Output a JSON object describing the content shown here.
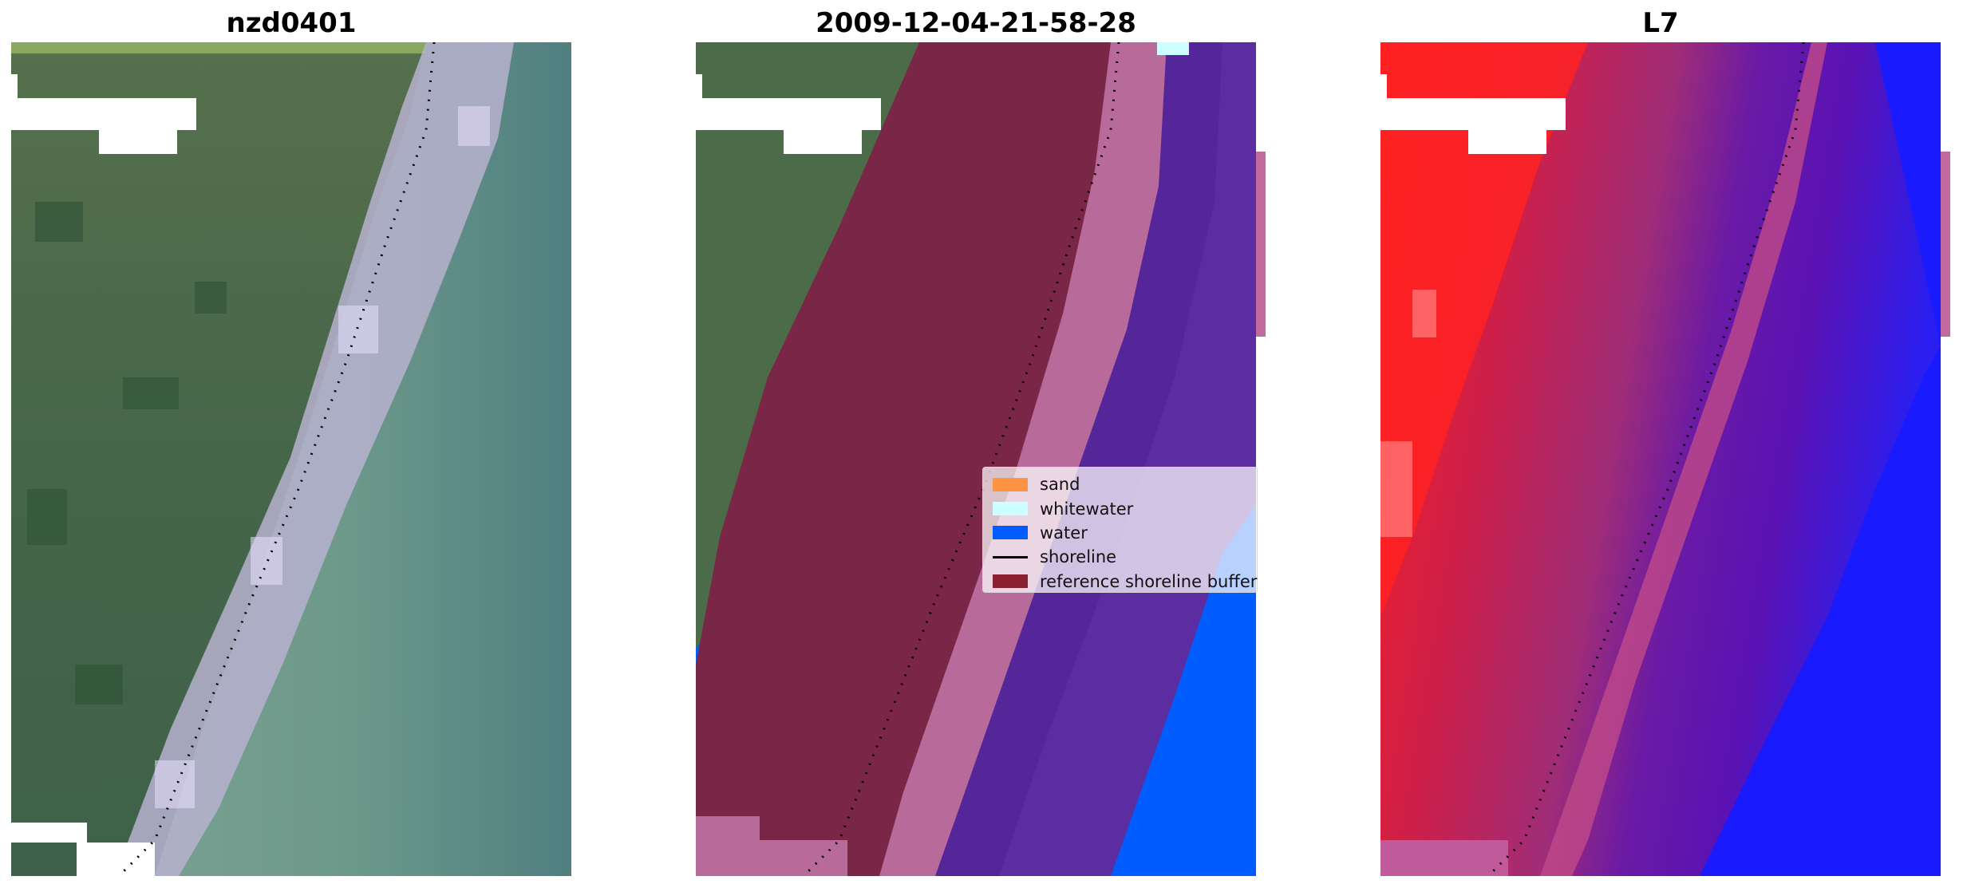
{
  "panels": [
    {
      "title": "nzd0401",
      "kind": "rgb"
    },
    {
      "title": "2009-12-04-21-58-28",
      "kind": "classified"
    },
    {
      "title": "L7",
      "kind": "index"
    }
  ],
  "legend": {
    "items": [
      {
        "label": "sand",
        "color": "#ff9444",
        "style": "patch"
      },
      {
        "label": "whitewater",
        "color": "#ccffff",
        "style": "patch"
      },
      {
        "label": "water",
        "color": "#005cff",
        "style": "patch"
      },
      {
        "label": "shoreline",
        "color": "#000000",
        "style": "line"
      },
      {
        "label": "reference shoreline buffer",
        "color": "#8b2030",
        "style": "patch"
      }
    ]
  },
  "colors": {
    "land_green": "#4c6b48",
    "sea_teal": "#6f9b8c",
    "surf_lavender": "#c9bfe0",
    "buffer_maroon": "#7a2646",
    "buffer_purple": "#55259a",
    "water_blue": "#005cff",
    "index_red": "#ff1a1a",
    "index_blue": "#1a1aff",
    "shoreline_dots": "#000000"
  }
}
